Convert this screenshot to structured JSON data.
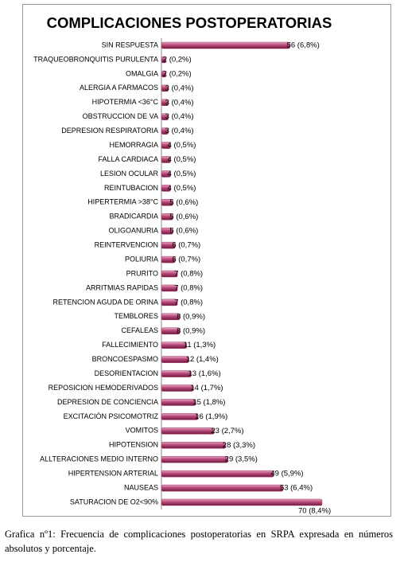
{
  "chart_data": {
    "type": "bar",
    "orientation": "horizontal",
    "title": "COMPLICACIONES POSTOPERATORIAS",
    "categories": [
      "SIN RESPUESTA",
      "TRAQUEOBRONQUITIS PURULENTA",
      "OMALGIA",
      "ALERGIA A FARMACOS",
      "HIPOTERMIA <36°C",
      "OBSTRUCCION DE VA",
      "DEPRESION RESPIRATORIA",
      "HEMORRAGIA",
      "FALLA CARDIACA",
      "LESION OCULAR",
      "REINTUBACION",
      "HIPERTERMIA >38°C",
      "BRADICARDIA",
      "OLIGOANURIA",
      "REINTERVENCION",
      "POLIURIA",
      "PRURITO",
      "ARRITMIAS RAPIDAS",
      "RETENCION AGUDA DE ORINA",
      "TEMBLORES",
      "CEFALEAS",
      "FALLECIMIENTO",
      "BRONCOESPASMO",
      "DESORIENTACION",
      "REPOSICION HEMODERIVADOS",
      "DEPRESION DE CONCIENCIA",
      "EXCITACIÓN PSICOMOTRIZ",
      "VOMITOS",
      "HIPOTENSION",
      "ALLTERACIONES MEDIO INTERNO",
      "HIPERTENSION ARTERIAL",
      "NAUSEAS",
      "SATURACION DE O2<90%"
    ],
    "values": [
      56,
      2,
      2,
      3,
      3,
      3,
      3,
      4,
      4,
      4,
      4,
      5,
      5,
      5,
      6,
      6,
      7,
      7,
      7,
      8,
      8,
      11,
      12,
      13,
      14,
      15,
      16,
      23,
      28,
      29,
      49,
      53,
      70
    ],
    "value_labels": [
      "56 (6,8%)",
      "2 (0,2%)",
      "2 (0,2%)",
      "3 (0,4%)",
      "3 (0,4%)",
      "3 (0,4%)",
      "3 (0,4%)",
      "4 (0,5%)",
      "4 (0,5%)",
      "4 (0,5%)",
      "4 (0,5%)",
      "5 (0,6%)",
      "5 (0,6%)",
      "5 (0,6%)",
      "6 (0,7%)",
      "6 (0,7%)",
      "7 (0,8%)",
      "7 (0,8%)",
      "7 (0,8%)",
      "8 (0,9%)",
      "8 (0,9%)",
      "11 (1,3%)",
      "12 (1,4%)",
      "13 (1,6%)",
      "14 (1,7%)",
      "15 (1,8%)",
      "16 (1,9%)",
      "23 (2,7%)",
      "28 (3,3%)",
      "29 (3,5%)",
      "49 (5,9%)",
      "53 (6,4%)",
      "70 (8,4%)"
    ],
    "color": "#a3305f"
  },
  "caption": "Grafica nº1: Frecuencia de complicaciones postoperatorias en SRPA expresada en números absolutos y porcentaje."
}
